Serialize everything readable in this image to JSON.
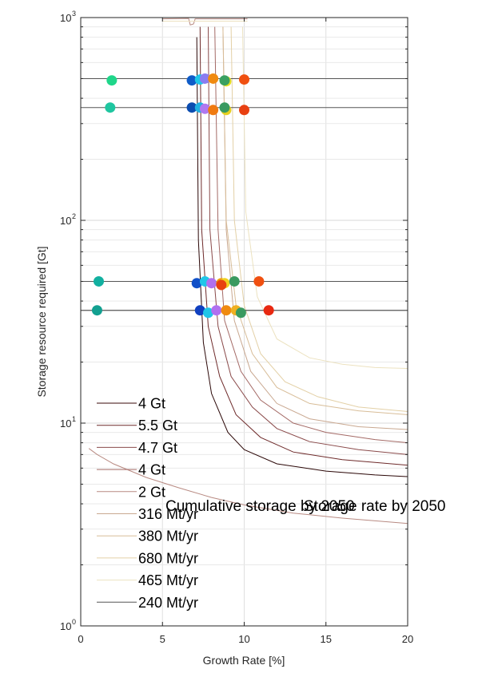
{
  "chart_data": {
    "type": "line",
    "xlabel": "Growth Rate [%]",
    "ylabel": "Storage resource required [Gt]",
    "xlim": [
      0,
      20
    ],
    "ylim": [
      1,
      1000
    ],
    "y_scale": "log",
    "x_ticks": [
      0,
      5,
      10,
      15,
      20
    ],
    "y_ticks": [
      {
        "base": "10",
        "exp": "0",
        "value": 1
      },
      {
        "base": "10",
        "exp": "1",
        "value": 10
      },
      {
        "base": "10",
        "exp": "2",
        "value": 100
      },
      {
        "base": "10",
        "exp": "3",
        "value": 1000
      }
    ],
    "grid": true,
    "legend_position": "lower-left",
    "legend": [
      {
        "label": "4 Gt",
        "color": "#3a0a0a"
      },
      {
        "label": "5.5 Gt",
        "color": "#6e2a2a"
      },
      {
        "label": "4.7 Gt",
        "color": "#8a4a4a"
      },
      {
        "label": "4 Gt",
        "color": "#a46a66"
      },
      {
        "label": "2 Gt",
        "color": "#b88a82"
      },
      {
        "label": "316 Mt/yr",
        "color": "#c9a890"
      },
      {
        "label": "380 Mt/yr",
        "color": "#d8bd98"
      },
      {
        "label": "680 Mt/yr",
        "color": "#e3d0a6"
      },
      {
        "label": "465 Mt/yr",
        "color": "#ece2c0"
      },
      {
        "label": "240 Mt/yr",
        "color": "#555555"
      }
    ],
    "annotations": [
      "Cumulative storage by 2050",
      "Storage rate by 2050"
    ],
    "series": [
      {
        "label_index": 0,
        "color": "#2a0606",
        "x": [
          7.1,
          7.2,
          7.5,
          8,
          9,
          10,
          12,
          15,
          18,
          20
        ],
        "y": [
          800,
          80,
          25,
          14,
          9,
          7.4,
          6.3,
          5.8,
          5.55,
          5.45
        ]
      },
      {
        "label_index": 1,
        "color": "#6e2a2a",
        "x": [
          7.3,
          7.4,
          7.8,
          8.5,
          9.5,
          11,
          13,
          16,
          20
        ],
        "y": [
          900,
          90,
          30,
          17,
          11,
          8.5,
          7.2,
          6.6,
          6.2
        ]
      },
      {
        "label_index": 2,
        "color": "#8a4a4a",
        "x": [
          7.8,
          7.9,
          8.4,
          9.2,
          10.5,
          12,
          14,
          17,
          20
        ],
        "y": [
          900,
          90,
          30,
          17,
          12,
          9.4,
          8.1,
          7.4,
          7.0
        ]
      },
      {
        "label_index": 3,
        "color": "#a46a66",
        "x": [
          8.2,
          8.4,
          8.8,
          9.8,
          11,
          13,
          15,
          18,
          20
        ],
        "y": [
          900,
          90,
          32,
          18,
          13,
          10,
          9,
          8.3,
          8
        ]
      },
      {
        "label_index": 4,
        "color": "#b88a82",
        "x": [
          0.5,
          1,
          2,
          4,
          6,
          8,
          10,
          13,
          16,
          20
        ],
        "y": [
          7.5,
          7,
          6.3,
          5.4,
          4.8,
          4.3,
          3.95,
          3.6,
          3.4,
          3.2
        ]
      },
      {
        "label_index": 5,
        "color": "#c9a890",
        "x": [
          8.7,
          8.9,
          9.4,
          10.4,
          12,
          14,
          17,
          20
        ],
        "y": [
          900,
          90,
          32,
          18,
          12.5,
          10.5,
          9.6,
          9.3
        ]
      },
      {
        "label_index": 6,
        "color": "#d8bd98",
        "x": [
          8.7,
          8.9,
          9.5,
          10.5,
          12,
          14,
          17,
          20
        ],
        "y": [
          900,
          100,
          38,
          22,
          15,
          12.5,
          11.5,
          11
        ]
      },
      {
        "label_index": 7,
        "color": "#e3d0a6",
        "x": [
          9.2,
          9.4,
          10,
          11,
          12.5,
          14.5,
          17,
          20
        ],
        "y": [
          900,
          100,
          38,
          22,
          16,
          13.5,
          12,
          11.4
        ]
      },
      {
        "label_index": 8,
        "color": "#ece2c0",
        "x": [
          9.9,
          10.1,
          10.8,
          12,
          14,
          16,
          18,
          20
        ],
        "y": [
          900,
          110,
          42,
          26,
          21,
          19.5,
          18.8,
          18.6
        ]
      },
      {
        "label_index": 9,
        "color": "#555555",
        "x": [
          0,
          20
        ],
        "y": [
          36,
          36
        ]
      }
    ],
    "reference_lines": [
      {
        "y": 500,
        "color": "#555555"
      },
      {
        "y": 360,
        "color": "#555555"
      },
      {
        "y": 50,
        "color": "#555555"
      },
      {
        "y": 36,
        "color": "#555555"
      }
    ],
    "points": [
      {
        "x": 1.9,
        "y": 490,
        "color": "#1fd68a"
      },
      {
        "x": 6.8,
        "y": 490,
        "color": "#0f5cc8"
      },
      {
        "x": 7.3,
        "y": 495,
        "color": "#1fc6e8"
      },
      {
        "x": 7.6,
        "y": 500,
        "color": "#8a7cf0"
      },
      {
        "x": 8.1,
        "y": 500,
        "color": "#f08a10"
      },
      {
        "x": 8.9,
        "y": 485,
        "color": "#e8e020"
      },
      {
        "x": 8.8,
        "y": 490,
        "color": "#3aa060"
      },
      {
        "x": 10.0,
        "y": 495,
        "color": "#f05010"
      },
      {
        "x": 1.8,
        "y": 360,
        "color": "#1fc6a0"
      },
      {
        "x": 6.8,
        "y": 360,
        "color": "#0a4cb0"
      },
      {
        "x": 7.3,
        "y": 360,
        "color": "#1fb0e0"
      },
      {
        "x": 7.6,
        "y": 355,
        "color": "#b078f0"
      },
      {
        "x": 8.1,
        "y": 350,
        "color": "#f07a10"
      },
      {
        "x": 8.9,
        "y": 350,
        "color": "#e8d020"
      },
      {
        "x": 8.8,
        "y": 360,
        "color": "#3a9a60"
      },
      {
        "x": 10.0,
        "y": 350,
        "color": "#e84010"
      },
      {
        "x": 1.1,
        "y": 50,
        "color": "#12b0a0"
      },
      {
        "x": 7.1,
        "y": 49,
        "color": "#1050c8"
      },
      {
        "x": 7.6,
        "y": 50,
        "color": "#1fc6e8"
      },
      {
        "x": 8.0,
        "y": 49,
        "color": "#b070f0"
      },
      {
        "x": 8.6,
        "y": 49,
        "color": "#f0a010"
      },
      {
        "x": 8.8,
        "y": 49,
        "color": "#f0d020"
      },
      {
        "x": 9.4,
        "y": 50,
        "color": "#3a9a60"
      },
      {
        "x": 10.9,
        "y": 50,
        "color": "#f05010"
      },
      {
        "x": 8.6,
        "y": 48,
        "color": "#e84010"
      },
      {
        "x": 1.0,
        "y": 36,
        "color": "#12a090"
      },
      {
        "x": 7.3,
        "y": 36,
        "color": "#1040c0"
      },
      {
        "x": 7.8,
        "y": 35,
        "color": "#1fc6e8"
      },
      {
        "x": 8.3,
        "y": 36,
        "color": "#b070f0"
      },
      {
        "x": 8.9,
        "y": 36,
        "color": "#f08a10"
      },
      {
        "x": 9.5,
        "y": 36,
        "color": "#f0b020"
      },
      {
        "x": 9.8,
        "y": 35,
        "color": "#3a9a60"
      },
      {
        "x": 11.5,
        "y": 36,
        "color": "#e82810"
      }
    ]
  }
}
